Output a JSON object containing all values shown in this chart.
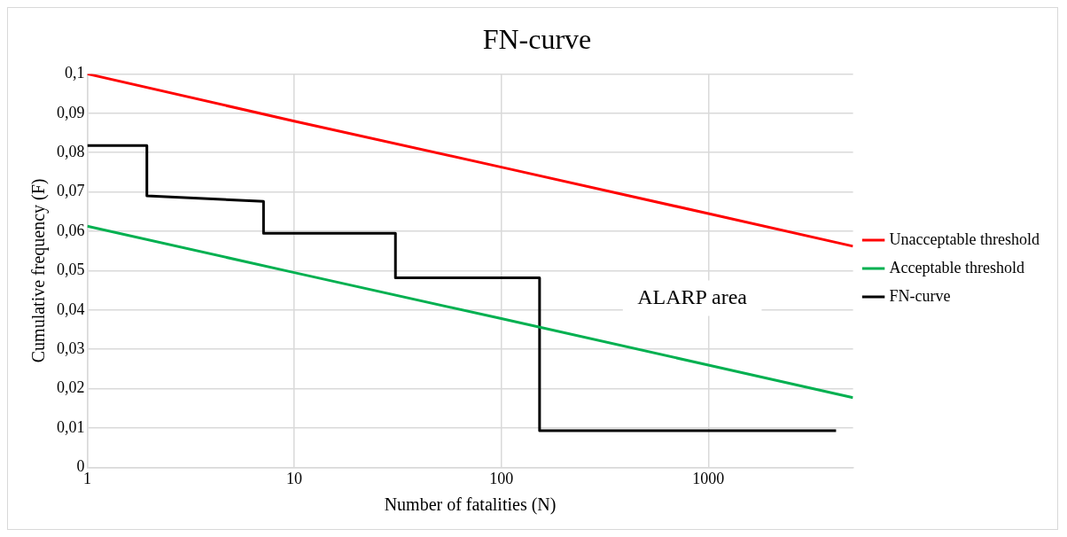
{
  "chart_data": {
    "type": "line",
    "title": "FN-curve",
    "xlabel": "Number of fatalities (N)",
    "ylabel": "Cumulative frequency (F)",
    "log": "x",
    "xlim": [
      1,
      5000
    ],
    "xticks": [
      1,
      10,
      100,
      1000
    ],
    "ylim": [
      0,
      0.1
    ],
    "yticks": [
      0,
      {
        "value": 0.01,
        "label": "0,01"
      },
      {
        "value": 0.02,
        "label": "0,02"
      },
      {
        "value": 0.03,
        "label": "0,03"
      },
      {
        "value": 0.04,
        "label": "0,04"
      },
      {
        "value": 0.05,
        "label": "0,05"
      },
      {
        "value": 0.06,
        "label": "0,06"
      },
      {
        "value": 0.07,
        "label": "0,07"
      },
      {
        "value": 0.08,
        "label": "0,08"
      },
      {
        "value": 0.09,
        "label": "0,09"
      },
      {
        "value": 0.1,
        "label": "0,1"
      }
    ],
    "grid": true,
    "legend": "right",
    "marker": "none",
    "line_style": "solid",
    "series": [
      {
        "name": "Unacceptable threshold",
        "color": "#ff0000",
        "x": [
          1,
          10,
          100,
          1000,
          5000
        ],
        "values": [
          0.1,
          0.088,
          0.0763,
          0.0645,
          0.0562
        ]
      },
      {
        "name": "Acceptable threshold",
        "color": "#00b050",
        "x": [
          1,
          10,
          100,
          1000,
          5000
        ],
        "values": [
          0.0613,
          0.0495,
          0.0378,
          0.026,
          0.0177
        ]
      },
      {
        "name": "FN-curve",
        "color": "#000000",
        "x": [
          1,
          1.94,
          1.94,
          7.1,
          7.1,
          30.8,
          30.8,
          153,
          153,
          4140
        ],
        "values": [
          0.0818,
          0.0818,
          0.069,
          0.0676,
          0.0595,
          0.0595,
          0.0482,
          0.0482,
          0.0093,
          0.0093
        ]
      }
    ],
    "annotations": [
      "ALARP area"
    ]
  }
}
